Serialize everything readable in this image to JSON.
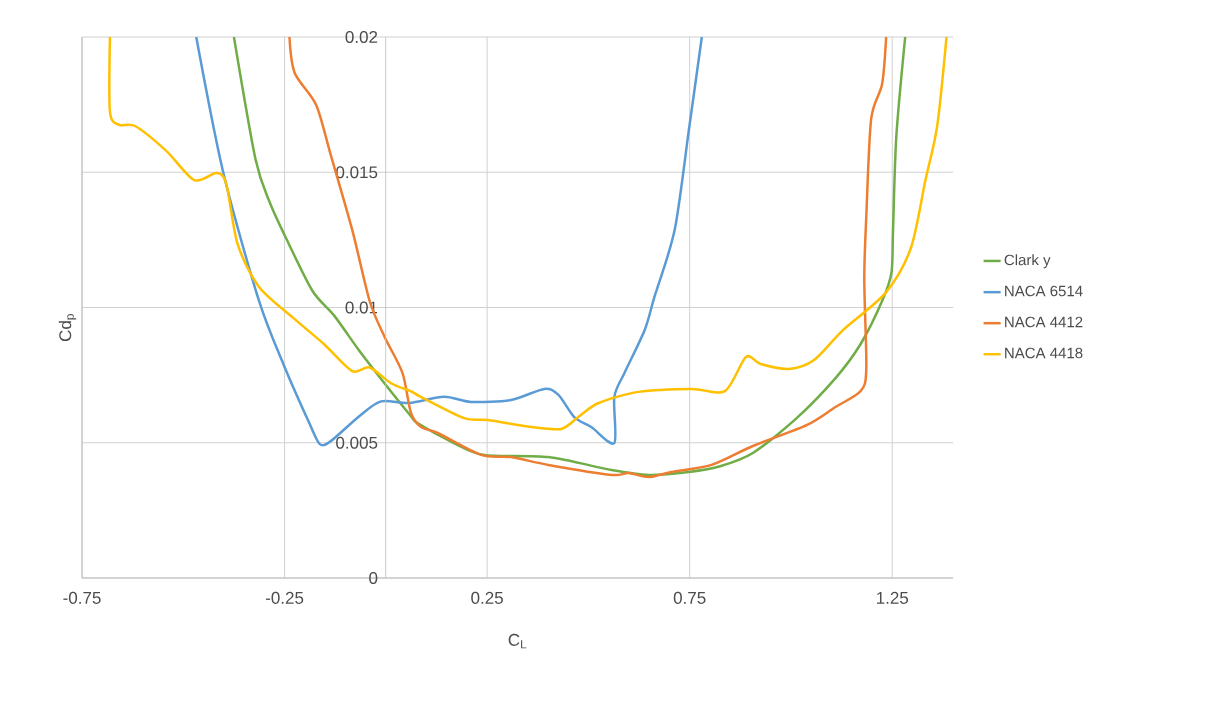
{
  "chart_data": {
    "type": "line",
    "xlabel": "C$_{L}$",
    "ylabel": "Cd$_{p}$",
    "xlim": [
      -0.75,
      1.4
    ],
    "ylim": [
      0,
      0.02
    ],
    "xticks": [
      -0.75,
      -0.25,
      0.25,
      0.75,
      1.25
    ],
    "yticks": [
      0,
      0.005,
      0.01,
      0.015,
      0.02
    ],
    "grid": true,
    "legend": "right",
    "series": [
      {
        "name": "Clark y",
        "color": "#70ad47",
        "x": [
          -0.375,
          -0.322,
          -0.287,
          -0.243,
          -0.181,
          -0.127,
          -0.065,
          -0.003,
          0.061,
          0.078,
          0.168,
          0.243,
          0.401,
          0.557,
          0.649,
          0.748,
          0.827,
          0.906,
          1.012,
          1.11,
          1.172,
          1.225,
          1.248,
          1.252,
          1.26,
          1.282
        ],
        "values": [
          0.02,
          0.0155,
          0.0139,
          0.01246,
          0.01061,
          0.00969,
          0.00839,
          0.00719,
          0.006,
          0.00573,
          0.00499,
          0.00455,
          0.00447,
          0.00399,
          0.00381,
          0.00392,
          0.00414,
          0.00462,
          0.00588,
          0.00739,
          0.00865,
          0.01024,
          0.01128,
          0.01287,
          0.0163,
          0.02
        ]
      },
      {
        "name": "NACA 6514",
        "color": "#5b9bd5",
        "x": [
          -0.468,
          -0.401,
          -0.313,
          -0.251,
          -0.189,
          -0.163,
          -0.136,
          -0.065,
          -0.012,
          0.058,
          0.144,
          0.21,
          0.309,
          0.391,
          0.426,
          0.465,
          0.507,
          0.564,
          0.564,
          0.589,
          0.639,
          0.663,
          0.713,
          0.748,
          0.78
        ],
        "values": [
          0.02,
          0.01497,
          0.01024,
          0.00784,
          0.00573,
          0.00495,
          0.00506,
          0.00599,
          0.00653,
          0.00647,
          0.0067,
          0.00651,
          0.00658,
          0.00699,
          0.00677,
          0.00595,
          0.00558,
          0.00499,
          0.00669,
          0.00758,
          0.00917,
          0.01039,
          0.01287,
          0.01656,
          0.02
        ]
      },
      {
        "name": "NACA 4412",
        "color": "#ed7d31",
        "x": [
          -0.238,
          -0.225,
          -0.172,
          -0.136,
          -0.083,
          -0.04,
          -0.003,
          0.041,
          0.062,
          0.087,
          0.128,
          0.235,
          0.309,
          0.401,
          0.557,
          0.599,
          0.649,
          0.705,
          0.804,
          0.906,
          1.04,
          1.11,
          1.172,
          1.186,
          1.181,
          1.186,
          1.198,
          1.225,
          1.235
        ],
        "values": [
          0.02,
          0.01867,
          0.01749,
          0.01564,
          0.01287,
          0.01024,
          0.00891,
          0.00758,
          0.0061,
          0.00558,
          0.00536,
          0.00455,
          0.00447,
          0.00418,
          0.00381,
          0.00388,
          0.00373,
          0.00392,
          0.00418,
          0.00488,
          0.00566,
          0.00632,
          0.00691,
          0.00773,
          0.01102,
          0.01338,
          0.01697,
          0.01826,
          0.02
        ]
      },
      {
        "name": "NACA 4418",
        "color": "#ffc000",
        "x": [
          -0.681,
          -0.681,
          -0.658,
          -0.619,
          -0.542,
          -0.473,
          -0.418,
          -0.394,
          -0.366,
          -0.313,
          -0.225,
          -0.153,
          -0.083,
          -0.04,
          0.014,
          0.061,
          0.087,
          0.193,
          0.252,
          0.359,
          0.433,
          0.475,
          0.525,
          0.624,
          0.755,
          0.837,
          0.889,
          0.925,
          0.995,
          1.057,
          1.129,
          1.234,
          1.296,
          1.332,
          1.361,
          1.384
        ],
        "values": [
          0.02,
          0.01723,
          0.01675,
          0.01671,
          0.01579,
          0.01471,
          0.01497,
          0.01457,
          0.01235,
          0.01076,
          0.00957,
          0.00865,
          0.00765,
          0.00778,
          0.00719,
          0.00691,
          0.00669,
          0.00591,
          0.00584,
          0.00558,
          0.00551,
          0.00595,
          0.00647,
          0.00688,
          0.00699,
          0.00691,
          0.00817,
          0.00791,
          0.00773,
          0.00806,
          0.00917,
          0.01055,
          0.0122,
          0.01471,
          0.01671,
          0.02
        ]
      }
    ]
  }
}
